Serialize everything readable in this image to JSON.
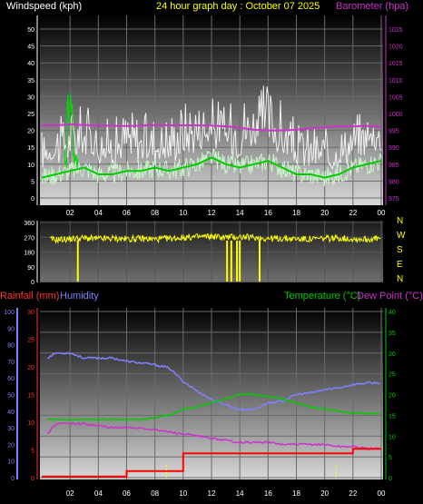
{
  "colors": {
    "wind": "#ffffff",
    "gust": "#f2f2f2",
    "wind_avg": "#00cc00",
    "gust_green": "#00dd00",
    "barometer": "#cc33cc",
    "direction": "#ffff00",
    "rain_axis": "#ff3333",
    "rain_line": "#ff0000",
    "humidity": "#8080ff",
    "temperature": "#00cc00",
    "dewpoint": "#cc33cc",
    "rain_marker": "#ffff00",
    "time_label": "#ffffff",
    "title_yellow": "#ffff00"
  },
  "header": {
    "windspeed": "Windspeed (kph)",
    "title": "24 hour graph day : October 07 2025",
    "barometer": "Barometer (hpa)"
  },
  "labels": {
    "rainfall": "Rainfall (mm)",
    "humidity": "Humidity",
    "temperature": "Temperature (°C)",
    "dewpoint": "Dew Point (°C)"
  },
  "x_ticks": [
    "02",
    "04",
    "06",
    "08",
    "10",
    "12",
    "14",
    "16",
    "18",
    "20",
    "22",
    "00"
  ],
  "chart_data": [
    {
      "type": "line",
      "name": "wind_barometer",
      "x_ticks": [
        "02",
        "04",
        "06",
        "08",
        "10",
        "12",
        "14",
        "16",
        "18",
        "20",
        "22",
        "00"
      ],
      "y_left": {
        "label": "Windspeed (kph)",
        "ticks": [
          "0",
          "5",
          "10",
          "15",
          "20",
          "25",
          "30",
          "35",
          "40",
          "45",
          "50"
        ],
        "range": [
          0,
          50
        ]
      },
      "y_right": {
        "label": "Barometer (hpa)",
        "ticks": [
          "975",
          "980",
          "985",
          "990",
          "995",
          "1000",
          "1005",
          "1010",
          "1015",
          "1020",
          "1025"
        ],
        "range": [
          975,
          1025
        ]
      },
      "series": [
        {
          "hours": [
            0,
            1,
            2,
            3,
            4,
            5,
            6,
            7,
            8,
            9,
            10,
            11,
            12,
            13,
            14,
            15,
            16,
            17,
            18,
            19,
            20,
            21,
            22,
            23,
            24
          ],
          "values": [
            9,
            11,
            12,
            12,
            11,
            10,
            11,
            11,
            11,
            11,
            13,
            15,
            16,
            14,
            13,
            16,
            17,
            12,
            10,
            10,
            9,
            10,
            12,
            14,
            15
          ]
        },
        {
          "hours": [
            0,
            1,
            2,
            3,
            4,
            5,
            6,
            7,
            8,
            9,
            10,
            11,
            12,
            13,
            14,
            15,
            16,
            17,
            18,
            19,
            20,
            21,
            22,
            23,
            24
          ],
          "values": [
            20,
            24,
            26,
            30,
            25,
            23,
            28,
            26,
            26,
            25,
            30,
            30,
            31,
            28,
            33,
            30,
            35,
            28,
            22,
            21,
            20,
            20,
            24,
            26,
            24
          ]
        },
        {
          "hours": [
            0,
            1,
            2,
            3,
            4,
            5,
            6,
            7,
            8,
            9,
            10,
            11,
            12,
            13,
            14,
            15,
            16,
            17,
            18,
            19,
            20,
            21,
            22,
            23,
            24
          ],
          "values": [
            6,
            7,
            8,
            9,
            7,
            7,
            8,
            8,
            9,
            8,
            9,
            10,
            12,
            10,
            9,
            10,
            11,
            9,
            7,
            7,
            6,
            7,
            9,
            10,
            11
          ]
        },
        {
          "hours": [
            0,
            1,
            2,
            3,
            4,
            5,
            6,
            7,
            8,
            9,
            10,
            11,
            12,
            13,
            14,
            15,
            16,
            17,
            18,
            19,
            20,
            21,
            22,
            23,
            24
          ],
          "values": [
            996.5,
            996.5,
            996.8,
            996.6,
            996.4,
            996.4,
            996.3,
            996.4,
            996.6,
            996.5,
            996.5,
            996.5,
            996.4,
            996.2,
            995.8,
            995.2,
            995.0,
            995.0,
            995.2,
            995.6,
            995.9,
            996.2,
            996.2,
            996.3,
            996.0
          ]
        }
      ]
    },
    {
      "type": "line",
      "name": "wind_direction",
      "x_ticks": [
        "02",
        "04",
        "06",
        "08",
        "10",
        "12",
        "14",
        "16",
        "18",
        "20",
        "22",
        "00"
      ],
      "y_left": {
        "ticks": [
          "360",
          "270",
          "180",
          "90",
          "0"
        ],
        "range": [
          0,
          360
        ]
      },
      "y_right": {
        "ticks": [
          "N",
          "W",
          "S",
          "E",
          "N"
        ]
      },
      "series": [
        {
          "hours": [
            0,
            1,
            2,
            3,
            4,
            5,
            6,
            7,
            8,
            9,
            10,
            11,
            12,
            13,
            14,
            15,
            16,
            17,
            18,
            19,
            20,
            21,
            22,
            23,
            24
          ],
          "values": [
            260,
            255,
            260,
            265,
            260,
            262,
            260,
            262,
            258,
            262,
            268,
            272,
            275,
            270,
            272,
            268,
            262,
            262,
            260,
            258,
            262,
            265,
            260,
            258,
            262
          ]
        }
      ]
    },
    {
      "type": "line",
      "name": "rain_humidity_temp",
      "x_ticks": [
        "02",
        "04",
        "06",
        "08",
        "10",
        "12",
        "14",
        "16",
        "18",
        "20",
        "22",
        "00"
      ],
      "y_left_humidity": {
        "label": "Humidity",
        "ticks": [
          "0",
          "10",
          "20",
          "30",
          "40",
          "50",
          "60",
          "70",
          "80",
          "90",
          "100"
        ],
        "range": [
          0,
          100
        ]
      },
      "y_left_rain": {
        "label": "Rainfall (mm)",
        "ticks": [
          "0",
          "5",
          "10",
          "15",
          "20",
          "25",
          "30"
        ],
        "range": [
          0,
          30
        ]
      },
      "y_right": {
        "label": "Temperature (°C)",
        "ticks": [
          "0",
          "5",
          "10",
          "15",
          "20",
          "25",
          "30",
          "35",
          "40"
        ],
        "range": [
          0,
          40
        ]
      },
      "series": [
        {
          "name": "Humidity",
          "hours": [
            0,
            1,
            2,
            3,
            4,
            5,
            6,
            7,
            8,
            9,
            10,
            11,
            12,
            13,
            14,
            15,
            16,
            17,
            18,
            19,
            20,
            21,
            22,
            23,
            24
          ],
          "values": [
            70,
            75,
            75,
            72,
            72,
            72,
            70,
            69,
            68,
            66,
            58,
            52,
            47,
            44,
            41,
            41,
            45,
            46,
            50,
            51,
            53,
            54,
            56,
            57,
            57
          ]
        },
        {
          "name": "Temperature (°C)",
          "hours": [
            0,
            1,
            2,
            3,
            4,
            5,
            6,
            7,
            8,
            9,
            10,
            11,
            12,
            13,
            14,
            15,
            16,
            17,
            18,
            19,
            20,
            21,
            22,
            23,
            24
          ],
          "values": [
            14,
            14,
            14,
            14,
            14,
            14,
            14,
            14,
            14.5,
            15,
            16.5,
            17,
            18,
            19,
            20,
            20,
            19.5,
            19,
            18,
            17,
            16.5,
            16,
            15.5,
            15.5,
            15.5
          ]
        },
        {
          "name": "Dew Point (°C)",
          "hours": [
            0,
            1,
            2,
            3,
            4,
            5,
            6,
            7,
            8,
            9,
            10,
            11,
            12,
            13,
            14,
            15,
            16,
            17,
            18,
            19,
            20,
            21,
            22,
            23,
            24
          ],
          "values": [
            9,
            13,
            13,
            13,
            12.5,
            12,
            12,
            12,
            11.5,
            11,
            10.5,
            10,
            9.5,
            9,
            8.5,
            8.5,
            8.5,
            8,
            8,
            8,
            8,
            7.5,
            7.5,
            7,
            7
          ]
        },
        {
          "name": "Rainfall (mm)",
          "hours": [
            0,
            1,
            2,
            3,
            4,
            5,
            6,
            7,
            8,
            9,
            10,
            11,
            12,
            13,
            14,
            15,
            16,
            17,
            18,
            19,
            20,
            21,
            22,
            23,
            24
          ],
          "values": [
            0.2,
            0.2,
            0.2,
            0.2,
            0.2,
            0.2,
            1.2,
            1.2,
            1.2,
            1.2,
            4.4,
            4.4,
            4.4,
            4.4,
            4.4,
            4.4,
            4.4,
            4.4,
            4.4,
            4.4,
            4.4,
            4.4,
            5.2,
            5.2,
            5.2
          ]
        }
      ]
    }
  ]
}
